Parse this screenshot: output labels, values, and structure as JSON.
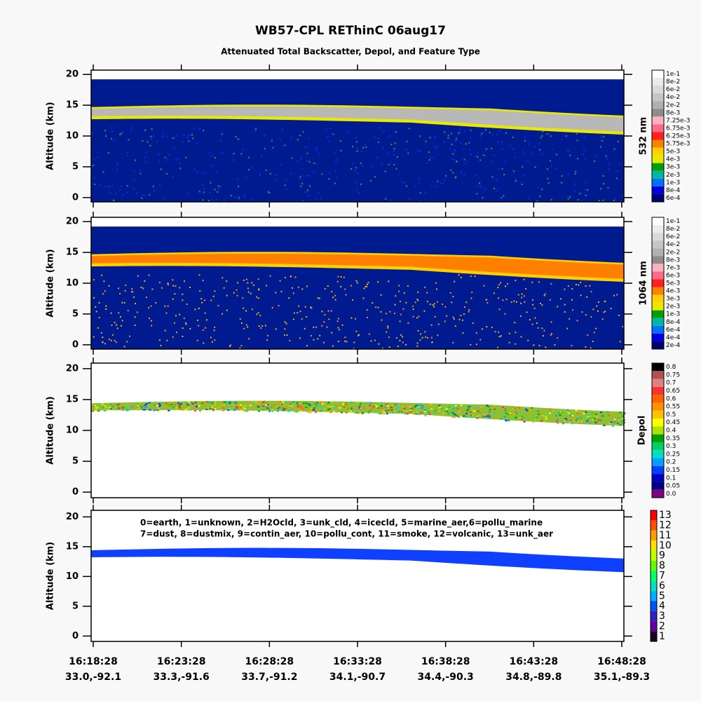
{
  "title": "WB57-CPL REThinC 06aug17",
  "subtitle": "Attenuated Total Backscatter, Depol, and Feature Type",
  "chart_data": [
    {
      "type": "heatmap",
      "y_label": "Altitude (km)",
      "ylim": [
        -0.7,
        20.7
      ],
      "yticks": [
        0,
        5,
        10,
        15,
        20
      ],
      "colorbar": {
        "title": "532 nm",
        "labels": [
          "1e-1",
          "8e-2",
          "6e-2",
          "4e-2",
          "2e-2",
          "8e-3",
          "7.25e-3",
          "6.75e-3",
          "6.25e-3",
          "5.75e-3",
          "5e-3",
          "4e-3",
          "3e-3",
          "2e-3",
          "1e-3",
          "8e-4",
          "6e-4"
        ],
        "colors": [
          "#ffffff",
          "#ececec",
          "#dadada",
          "#c6c6c6",
          "#b0b0b0",
          "#8c8c8c",
          "#ffb0c0",
          "#ff6a8a",
          "#ff2020",
          "#ff8000",
          "#ffd000",
          "#e8e800",
          "#00a000",
          "#00b8a0",
          "#0070ff",
          "#0000e0",
          "#000070"
        ]
      }
    },
    {
      "type": "heatmap",
      "y_label": "Altitude (km)",
      "ylim": [
        -0.7,
        20.7
      ],
      "yticks": [
        0,
        5,
        10,
        15,
        20
      ],
      "colorbar": {
        "title": "1064 nm",
        "labels": [
          "1e-1",
          "8e-2",
          "6e-2",
          "4e-2",
          "2e-2",
          "8e-3",
          "7e-3",
          "6e-3",
          "5e-3",
          "4e-3",
          "3e-3",
          "2e-3",
          "1e-3",
          "8e-4",
          "6e-4",
          "4e-4",
          "2e-4"
        ],
        "colors": [
          "#ffffff",
          "#ececec",
          "#dadada",
          "#c6c6c6",
          "#b0b0b0",
          "#8c8c8c",
          "#ffb0c0",
          "#ff6a8a",
          "#ff2020",
          "#ff8000",
          "#ffd000",
          "#e8e800",
          "#00a000",
          "#00b8a0",
          "#0070ff",
          "#0000e0",
          "#000070"
        ]
      }
    },
    {
      "type": "heatmap",
      "y_label": "Altitude (km)",
      "ylim": [
        -0.9,
        20.9
      ],
      "yticks": [
        0,
        5,
        10,
        15,
        20
      ],
      "colorbar": {
        "title": "Depol",
        "labels": [
          "0.8",
          "0.75",
          "0.7",
          "0.65",
          "0.6",
          "0.55",
          "0.5",
          "0.45",
          "0.4",
          "0.35",
          "0.3",
          "0.25",
          "0.2",
          "0.15",
          "0.1",
          "0.05",
          "0.0"
        ],
        "colors": [
          "#000000",
          "#b05050",
          "#e08080",
          "#ff3030",
          "#ff6000",
          "#ff9000",
          "#ffc000",
          "#ffff00",
          "#b0e000",
          "#00a000",
          "#00d060",
          "#00e0c0",
          "#00a0ff",
          "#0040ff",
          "#0000c0",
          "#000080",
          "#800080"
        ]
      }
    },
    {
      "type": "heatmap",
      "y_label": "Altitude (km)",
      "ylim": [
        -0.9,
        21.1
      ],
      "yticks": [
        0,
        5,
        10,
        15,
        20
      ],
      "colorbar": {
        "labels": [
          13,
          12,
          11,
          10,
          9,
          8,
          7,
          6,
          5,
          4,
          3,
          2,
          1
        ],
        "colors": [
          "#ff0000",
          "#ff5000",
          "#ffa000",
          "#ffe000",
          "#c0ff00",
          "#60ff00",
          "#00ff60",
          "#00e0c0",
          "#00b0ff",
          "#0050ff",
          "#3020c0",
          "#6000a0",
          "#200020"
        ]
      },
      "legend": [
        "0=earth, 1=unknown, 2=H2Ocld, 3=unk_cld, 4=icecld, 5=marine_aer,6=pollu_marine",
        "7=dust, 8=dustmix, 9=contin_aer, 10=pollu_cont, 11=smoke, 12=volcanic, 13=unk_aer"
      ]
    }
  ],
  "x_axis": {
    "ticks": [
      {
        "time": "16:18:28",
        "position": "33.0,-92.1"
      },
      {
        "time": "16:23:28",
        "position": "33.3,-91.6"
      },
      {
        "time": "16:28:28",
        "position": "33.7,-91.2"
      },
      {
        "time": "16:33:28",
        "position": "34.1,-90.7"
      },
      {
        "time": "16:38:28",
        "position": "34.4,-90.3"
      },
      {
        "time": "16:43:28",
        "position": "34.8,-89.8"
      },
      {
        "time": "16:48:28",
        "position": "35.1,-89.3"
      }
    ]
  }
}
